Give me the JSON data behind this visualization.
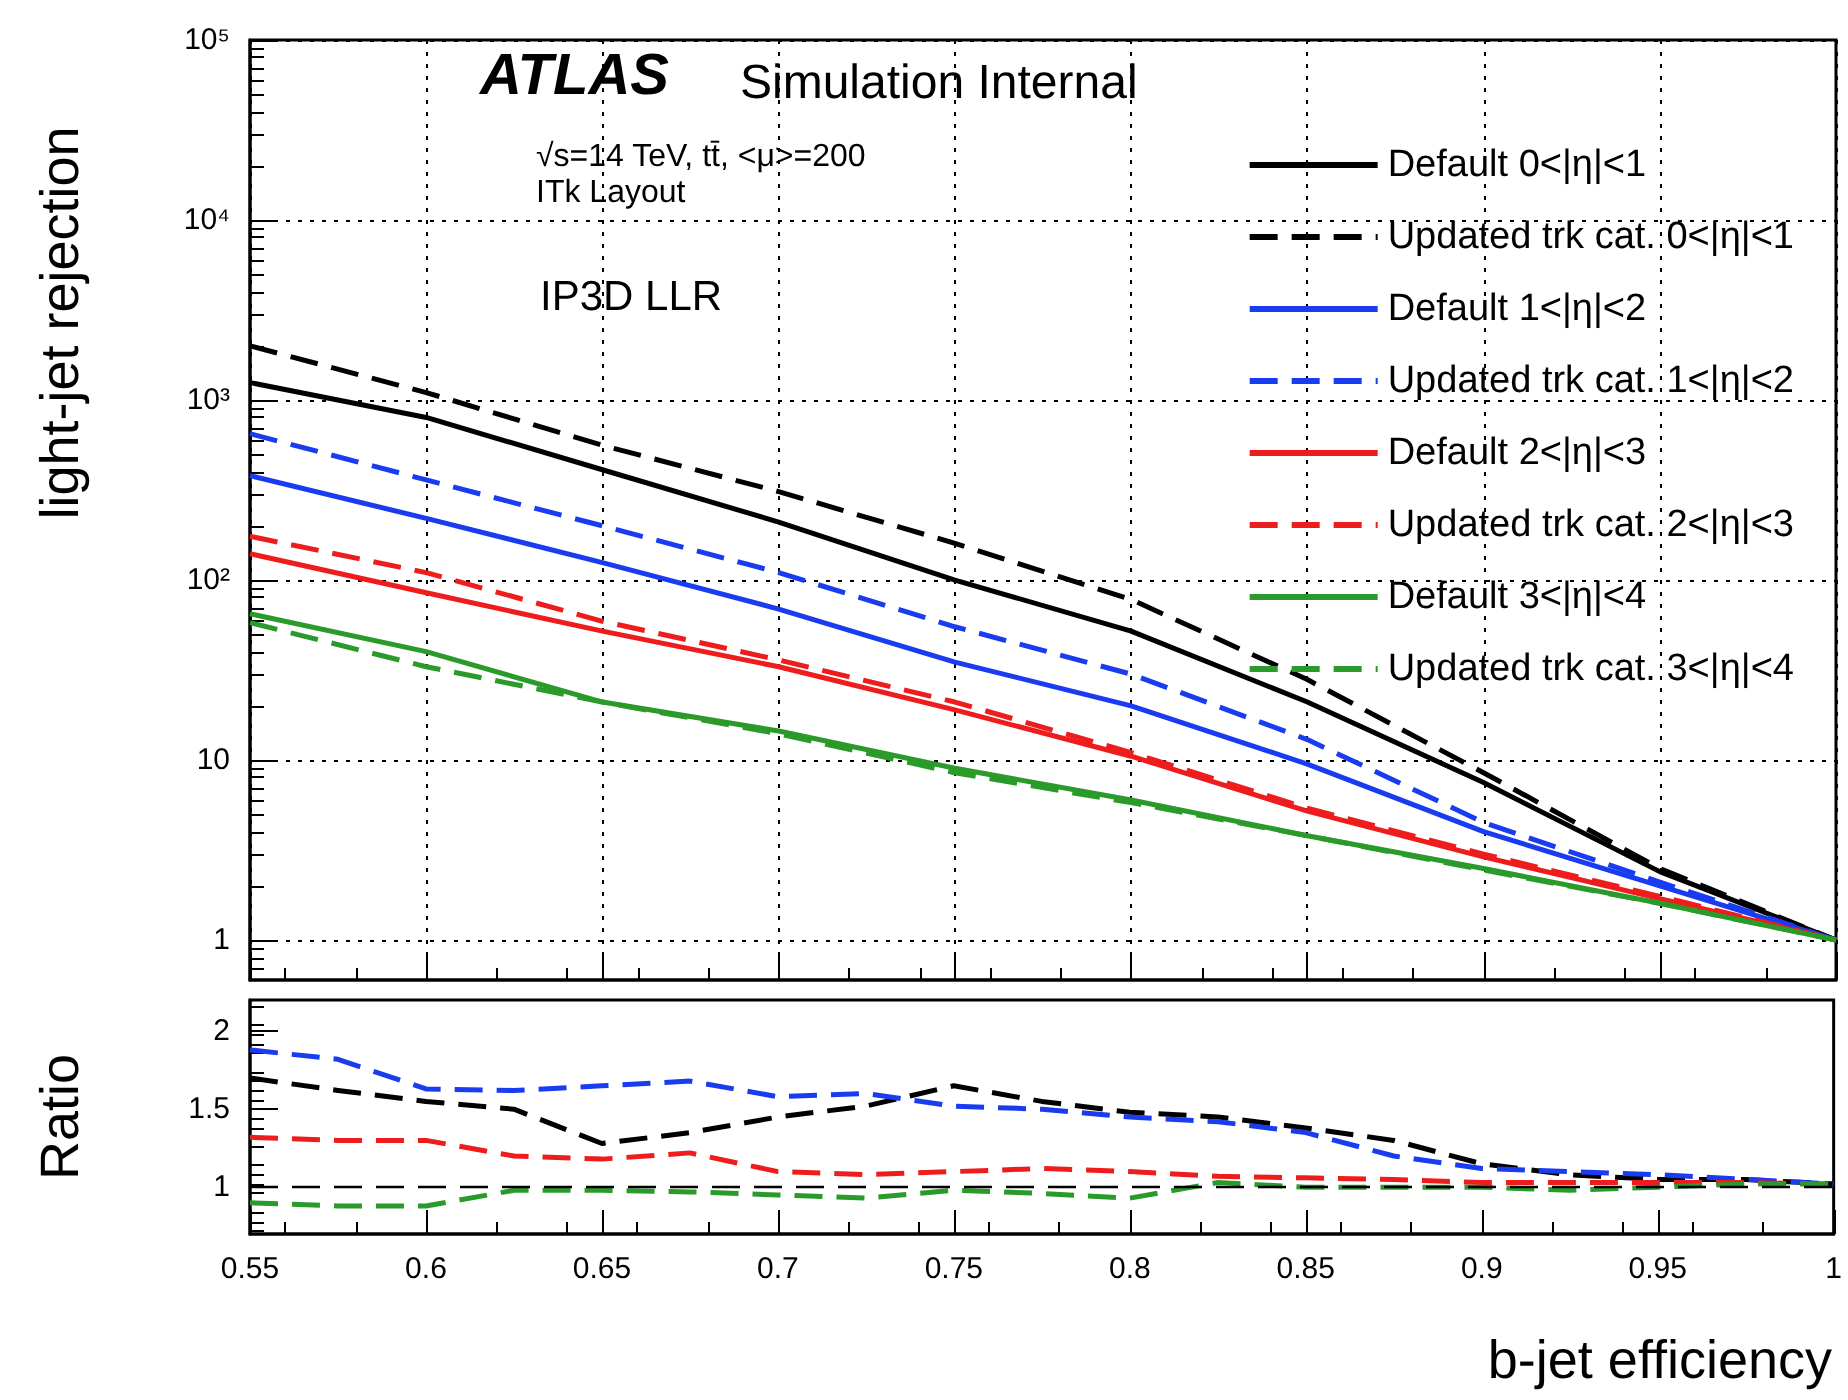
{
  "chart_data": [
    {
      "type": "line",
      "ylabel": "light-jet rejection",
      "annotations": [
        "ATLAS",
        "Simulation Internal",
        "√s=14 TeV, tt̄, <μ>=200",
        "ITk Layout",
        "IP3D LLR"
      ],
      "x": [
        0.55,
        0.6,
        0.65,
        0.7,
        0.75,
        0.8,
        0.85,
        0.9,
        0.95,
        1
      ],
      "series": [
        {
          "name": "Default 0<|η|<1",
          "color": "#000000",
          "line_style": "solid",
          "values": [
            1250,
            800,
            410,
            210,
            100,
            52,
            21,
            7.5,
            2.4,
            1
          ]
        },
        {
          "name": "Updated trk cat. 0<|η|<1",
          "color": "#000000",
          "line_style": "dashed",
          "values": [
            2000,
            1100,
            560,
            310,
            160,
            78,
            28,
            8.5,
            2.5,
            1
          ]
        },
        {
          "name": "Default 1<|η|<2",
          "color": "#1a3cf0",
          "line_style": "solid",
          "values": [
            380,
            220,
            125,
            69,
            35,
            20,
            9.5,
            4,
            2,
            1
          ]
        },
        {
          "name": "Updated trk cat. 1<|η|<2",
          "color": "#1a3cf0",
          "line_style": "dashed",
          "values": [
            650,
            360,
            200,
            110,
            55,
            30,
            13,
            4.5,
            2.1,
            1
          ]
        },
        {
          "name": "Default 2<|η|<3",
          "color": "#ee1c1c",
          "line_style": "solid",
          "values": [
            140,
            85,
            52,
            33,
            19,
            10.5,
            5.2,
            2.9,
            1.7,
            1
          ]
        },
        {
          "name": "Updated trk cat. 2<|η|<3",
          "color": "#ee1c1c",
          "line_style": "dashed",
          "values": [
            175,
            110,
            59,
            36,
            21,
            11,
            5.4,
            3,
            1.75,
            1
          ]
        },
        {
          "name": "Default 3<|η|<4",
          "color": "#2a9a2a",
          "line_style": "solid",
          "values": [
            65,
            40,
            21,
            14.5,
            9,
            6,
            3.8,
            2.5,
            1.6,
            1
          ]
        },
        {
          "name": "Updated trk cat. 3<|η|<4",
          "color": "#2a9a2a",
          "line_style": "dashed",
          "values": [
            58,
            33,
            21,
            14,
            8.5,
            5.8,
            3.8,
            2.45,
            1.6,
            1
          ]
        }
      ],
      "log": "y",
      "xlim": [
        0.55,
        1
      ],
      "xticks": [
        0.55,
        0.6,
        0.65,
        0.7,
        0.75,
        0.8,
        0.85,
        0.9,
        0.95,
        1
      ],
      "ylim": [
        0.6,
        100000
      ],
      "yticks": [
        1,
        10,
        {
          "value": 100,
          "label": "10²"
        },
        {
          "value": 1000,
          "label": "10³"
        },
        {
          "value": 10000,
          "label": "10⁴"
        },
        {
          "value": 100000,
          "label": "10⁵"
        }
      ],
      "grid": true,
      "legend": "top right",
      "marker": "none",
      "tick_labels": "y"
    },
    {
      "type": "line",
      "ylabel": "Ratio",
      "xlabel": "b-jet efficiency",
      "x": [
        0.55,
        0.575,
        0.6,
        0.625,
        0.65,
        0.675,
        0.7,
        0.725,
        0.75,
        0.775,
        0.8,
        0.825,
        0.85,
        0.875,
        0.9,
        0.925,
        0.95,
        0.975,
        1
      ],
      "series": [
        {
          "color": "#000000",
          "line_style": "dashed",
          "values": [
            1.7,
            1.62,
            1.55,
            1.5,
            1.28,
            1.35,
            1.45,
            1.52,
            1.65,
            1.55,
            1.48,
            1.45,
            1.38,
            1.3,
            1.15,
            1.08,
            1.05,
            1.05,
            1.02
          ]
        },
        {
          "color": "#1a3cf0",
          "line_style": "dashed",
          "values": [
            1.88,
            1.82,
            1.63,
            1.62,
            1.65,
            1.68,
            1.58,
            1.6,
            1.52,
            1.5,
            1.45,
            1.42,
            1.35,
            1.2,
            1.12,
            1.1,
            1.08,
            1.05,
            1.02
          ]
        },
        {
          "color": "#ee1c1c",
          "line_style": "dashed",
          "values": [
            1.32,
            1.3,
            1.3,
            1.2,
            1.18,
            1.22,
            1.1,
            1.08,
            1.1,
            1.12,
            1.1,
            1.07,
            1.06,
            1.05,
            1.03,
            1.03,
            1.03,
            1.03,
            1.02
          ]
        },
        {
          "color": "#2a9a2a",
          "line_style": "dashed",
          "values": [
            0.9,
            0.88,
            0.88,
            0.98,
            0.98,
            0.97,
            0.95,
            0.93,
            0.98,
            0.96,
            0.93,
            1.03,
            1,
            1,
            1,
            0.98,
            1,
            1.02,
            1.02
          ]
        }
      ],
      "ref_lines": [
        {
          "axis": "y",
          "value": 1,
          "color": "#000000",
          "line_style": "dashed"
        }
      ],
      "xlim": [
        0.55,
        1
      ],
      "xticks": [
        0.55,
        0.6,
        0.65,
        0.7,
        0.75,
        0.8,
        0.85,
        0.9,
        0.95,
        1
      ],
      "ylim": [
        0.7,
        2.2
      ],
      "yticks": [
        1,
        1.5,
        2
      ],
      "grid": false,
      "legend": false,
      "marker": "none"
    }
  ]
}
